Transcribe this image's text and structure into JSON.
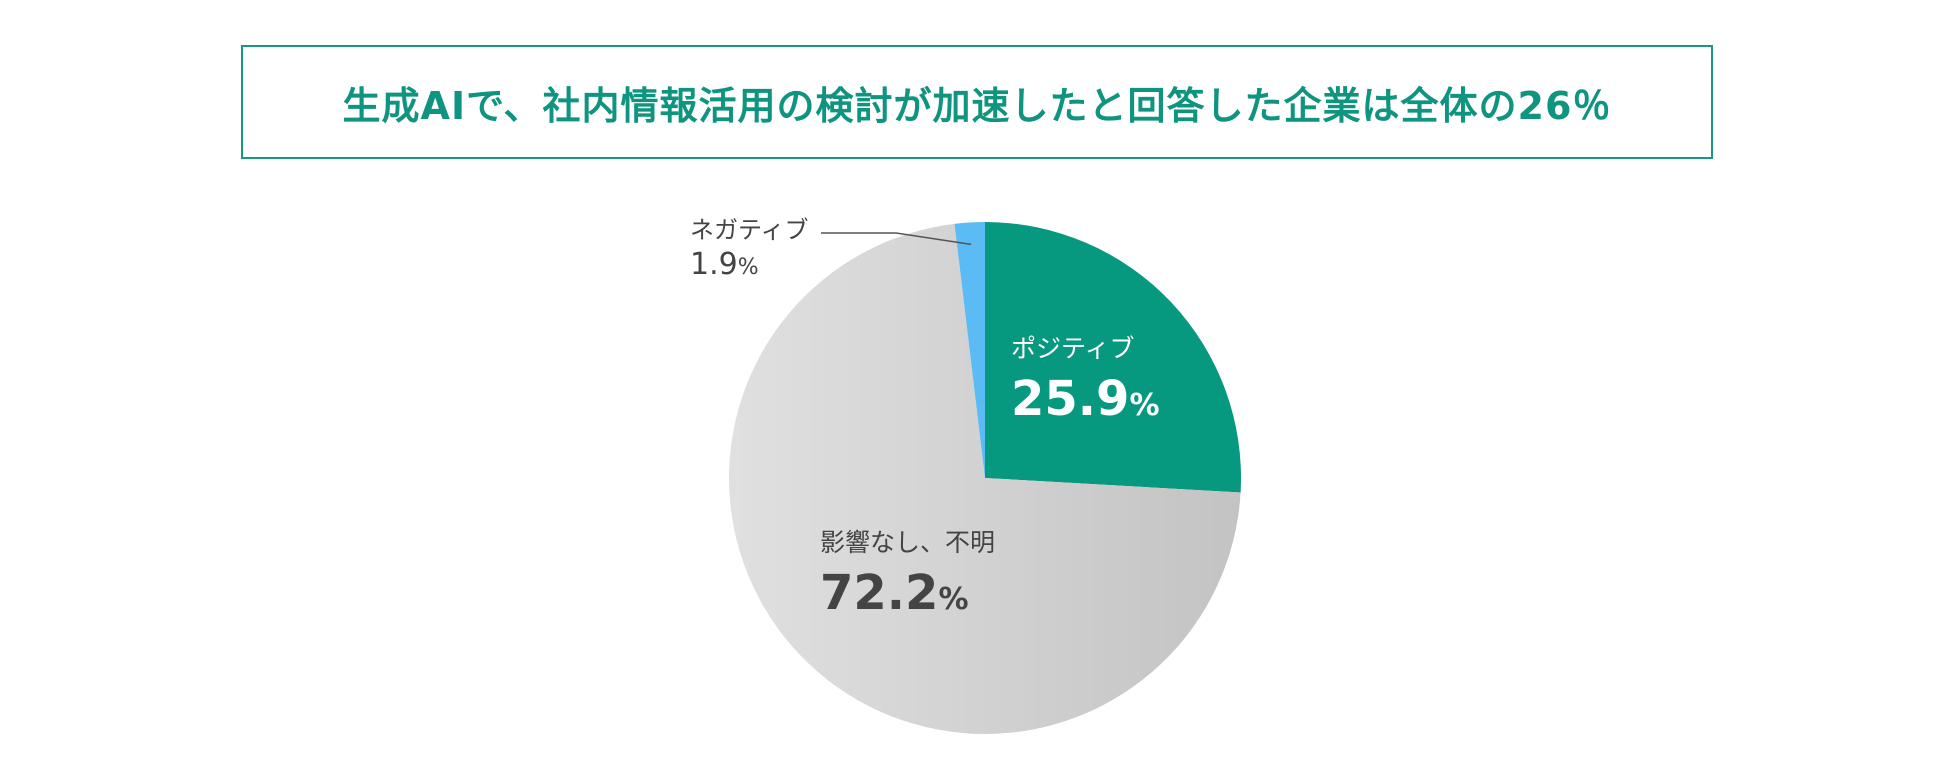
{
  "title": "生成AIで、社内情報活用の検討が加速したと回答した企業は全体の26％",
  "colors": {
    "title": "#0f9480",
    "positive": "#079880",
    "negative": "#5bbcf5",
    "none_light": "#dedede",
    "none_dark": "#c4c4c4",
    "leader_line": "#555555"
  },
  "chart_data": {
    "type": "pie",
    "start": "12 o'clock",
    "direction": "clockwise",
    "slices": [
      {
        "label": "ポジティブ",
        "value": 25.9,
        "display": "25.9",
        "unit": "%",
        "color": "#079880"
      },
      {
        "label": "影響なし、不明",
        "value": 72.2,
        "display": "72.2",
        "unit": "%",
        "color": "#d4d4d4"
      },
      {
        "label": "ネガティブ",
        "value": 1.9,
        "display": "1.9",
        "unit": "%",
        "color": "#5bbcf5"
      }
    ]
  }
}
